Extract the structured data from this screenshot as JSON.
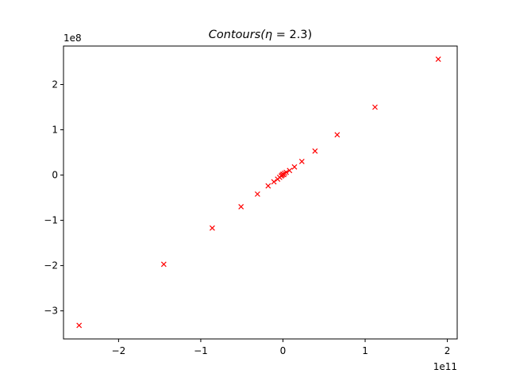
{
  "chart_data": {
    "type": "scatter",
    "title": "Contours(η = 2.3)",
    "title_parts": {
      "name": "Contours(",
      "symbol": "η",
      "rest": " = 2.3)"
    },
    "xlabel": "",
    "ylabel": "",
    "x_offset_text": "1e11",
    "y_offset_text": "1e8",
    "xlim": [
      -267000000000.0,
      212000000000.0
    ],
    "ylim": [
      -362000000.0,
      285000000.0
    ],
    "x_ticks": [
      {
        "value": -200000000000.0,
        "label": "−2"
      },
      {
        "value": -100000000000.0,
        "label": "−1"
      },
      {
        "value": 0,
        "label": "0"
      },
      {
        "value": 100000000000.0,
        "label": "1"
      },
      {
        "value": 200000000000.0,
        "label": "2"
      }
    ],
    "y_ticks": [
      {
        "value": -300000000.0,
        "label": "−3"
      },
      {
        "value": -200000000.0,
        "label": "−2"
      },
      {
        "value": -100000000.0,
        "label": "−1"
      },
      {
        "value": 0,
        "label": "0"
      },
      {
        "value": 100000000.0,
        "label": "1"
      },
      {
        "value": 200000000.0,
        "label": "2"
      }
    ],
    "grid": false,
    "legend": "none",
    "marker": "x",
    "color": "#ff0000",
    "series": [
      {
        "points": [
          [
            -248000000000.0,
            -332000000.0
          ],
          [
            -145000000000.0,
            -197000000.0
          ],
          [
            -86000000000.0,
            -117000000.0
          ],
          [
            -51000000000.0,
            -70000000.0
          ],
          [
            -31000000000.0,
            -42000000.0
          ],
          [
            -18000000000.0,
            -24000000.0
          ],
          [
            -11000000000.0,
            -15000000.0
          ],
          [
            -6500000000.0,
            -9000000.0
          ],
          [
            -4000000000.0,
            -5000000.0
          ],
          [
            -2000000000.0,
            -2000000.0
          ],
          [
            -1000000000.0,
            0.0
          ],
          [
            0.0,
            2000000.0
          ],
          [
            1000000000.0,
            1000000.0
          ],
          [
            2000000000.0,
            4000000.0
          ],
          [
            4000000000.0,
            6000000.0
          ],
          [
            8000000000.0,
            10000000.0
          ],
          [
            14000000000.0,
            18000000.0
          ],
          [
            23000000000.0,
            30000000.0
          ],
          [
            39000000000.0,
            53000000.0
          ],
          [
            66000000000.0,
            89000000.0
          ],
          [
            112000000000.0,
            150000000.0
          ],
          [
            189000000000.0,
            256000000.0
          ]
        ]
      }
    ]
  }
}
